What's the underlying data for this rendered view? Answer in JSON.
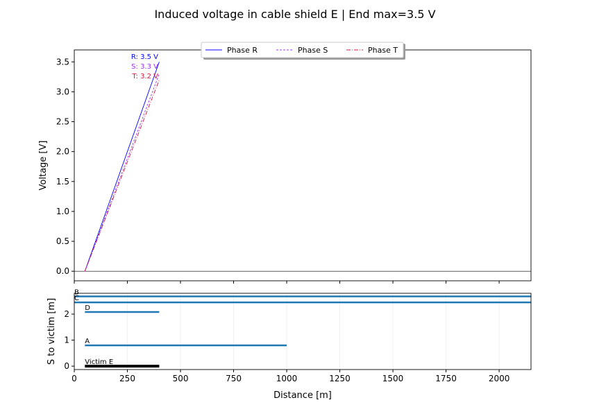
{
  "chart_data": [
    {
      "type": "line",
      "title": "Induced voltage in cable shield E  |  End max=3.5 V",
      "xlabel": "",
      "ylabel": "Voltage [V]",
      "xlim": [
        0,
        2150
      ],
      "ylim": [
        -0.16,
        3.7
      ],
      "yticks": [
        "0.0",
        "0.5",
        "1.0",
        "1.5",
        "2.0",
        "2.5",
        "3.0",
        "3.5"
      ],
      "xticks": [
        0,
        250,
        500,
        750,
        1000,
        1250,
        1500,
        1750,
        2000
      ],
      "grid": false,
      "legend": "top-center",
      "series": [
        {
          "name": "Phase R",
          "color": "#0000ff",
          "dash": "solid",
          "x": [
            50,
            400
          ],
          "y": [
            0,
            3.5
          ],
          "end_label": "R: 3.5 V"
        },
        {
          "name": "Phase S",
          "color": "#9b30ff",
          "dash": "dashed",
          "x": [
            50,
            400
          ],
          "y": [
            0,
            3.3
          ],
          "end_label": "S: 3.3 V"
        },
        {
          "name": "Phase T",
          "color": "#dc143c",
          "dash": "dashdot",
          "x": [
            50,
            400
          ],
          "y": [
            0,
            3.2
          ],
          "end_label": "T: 3.2 V"
        }
      ]
    },
    {
      "type": "line",
      "xlabel": "Distance [m]",
      "ylabel": "S to victim [m]",
      "xlim": [
        0,
        2150
      ],
      "ylim": [
        -0.13,
        2.8
      ],
      "xticks": [
        "0",
        "250",
        "500",
        "750",
        "1000",
        "1250",
        "1500",
        "1750",
        "2000"
      ],
      "yticks": [
        "0",
        "1",
        "2"
      ],
      "grid": true,
      "series": [
        {
          "name": "B",
          "color": "#1f77b4",
          "x": [
            0,
            2150
          ],
          "y": [
            2.68,
            2.68
          ]
        },
        {
          "name": "C",
          "color": "#1f77b4",
          "x": [
            0,
            2150
          ],
          "y": [
            2.45,
            2.45
          ]
        },
        {
          "name": "D",
          "color": "#1f77b4",
          "x": [
            50,
            400
          ],
          "y": [
            2.08,
            2.08
          ]
        },
        {
          "name": "A",
          "color": "#1f77b4",
          "x": [
            50,
            1000
          ],
          "y": [
            0.8,
            0.8
          ]
        },
        {
          "name": "Victim E",
          "color": "#000000",
          "x": [
            50,
            400
          ],
          "y": [
            0,
            0
          ]
        }
      ]
    }
  ]
}
